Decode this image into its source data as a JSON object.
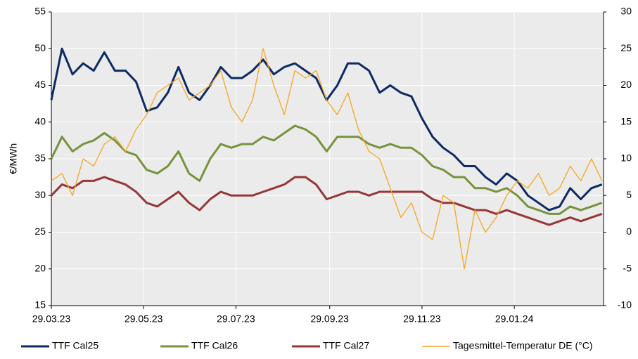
{
  "chart_data": {
    "type": "line",
    "ylabel": "€/MWh",
    "x": [
      "2023-03-29",
      "2023-04-05",
      "2023-04-12",
      "2023-04-19",
      "2023-04-26",
      "2023-05-03",
      "2023-05-10",
      "2023-05-17",
      "2023-05-24",
      "2023-05-31",
      "2023-06-07",
      "2023-06-14",
      "2023-06-21",
      "2023-06-28",
      "2023-07-05",
      "2023-07-12",
      "2023-07-19",
      "2023-07-26",
      "2023-08-02",
      "2023-08-09",
      "2023-08-16",
      "2023-08-23",
      "2023-08-30",
      "2023-09-06",
      "2023-09-13",
      "2023-09-20",
      "2023-09-27",
      "2023-10-04",
      "2023-10-11",
      "2023-10-18",
      "2023-10-25",
      "2023-11-01",
      "2023-11-08",
      "2023-11-15",
      "2023-11-22",
      "2023-11-29",
      "2023-12-06",
      "2023-12-13",
      "2023-12-20",
      "2023-12-27",
      "2024-01-03",
      "2024-01-10",
      "2024-01-17",
      "2024-01-24",
      "2024-01-31",
      "2024-02-07",
      "2024-02-14",
      "2024-02-21",
      "2024-02-28",
      "2024-03-06",
      "2024-03-13",
      "2024-03-20",
      "2024-03-27"
    ],
    "xlim": [
      "2023-03-29",
      "2024-03-28"
    ],
    "xticks": [
      {
        "value": "2023-03-29",
        "label": "29.03.23"
      },
      {
        "value": "2023-05-29",
        "label": "29.05.23"
      },
      {
        "value": "2023-07-29",
        "label": "29.07.23"
      },
      {
        "value": "2023-09-29",
        "label": "29.09.23"
      },
      {
        "value": "2023-11-29",
        "label": "29.11.23"
      },
      {
        "value": "2024-01-29",
        "label": "29.01.24"
      }
    ],
    "ylim": [
      15,
      55
    ],
    "yticks": [
      15,
      20,
      25,
      30,
      35,
      40,
      45,
      50,
      55
    ],
    "y2lim": [
      -10,
      30
    ],
    "y2ticks": [
      -10,
      -5,
      0,
      5,
      10,
      15,
      20,
      25,
      30
    ],
    "grid": true,
    "legend": "bottom",
    "series": [
      {
        "name": "TTF Cal25",
        "color": "#0d2a63",
        "values": [
          43,
          50,
          46.5,
          48,
          47,
          49.5,
          47,
          47,
          45.5,
          41.5,
          42,
          44,
          47.5,
          44,
          43,
          45,
          47.5,
          46,
          46,
          47,
          48.5,
          46.5,
          47.5,
          48,
          47,
          46,
          43,
          45,
          48,
          48,
          47,
          44,
          45,
          44,
          43.5,
          40.5,
          38,
          36.5,
          35.5,
          34,
          34,
          32.5,
          31.5,
          33,
          32,
          30,
          29,
          28,
          28.5,
          31,
          29.5,
          31,
          31.5
        ]
      },
      {
        "name": "TTF Cal26",
        "color": "#77933c",
        "values": [
          35,
          38,
          36,
          37,
          37.5,
          38.5,
          37.5,
          36,
          35.5,
          33.5,
          33,
          34,
          36,
          33,
          32,
          35,
          37,
          36.5,
          37,
          37,
          38,
          37.5,
          38.5,
          39.5,
          39,
          38,
          36,
          38,
          38,
          38,
          37,
          36.5,
          37,
          36.5,
          36.5,
          35.5,
          34,
          33.5,
          32.5,
          32.5,
          31,
          31,
          30.5,
          31,
          30,
          28.5,
          28,
          27.5,
          27.5,
          28.5,
          28,
          28.5,
          29
        ]
      },
      {
        "name": "TTF Cal27",
        "color": "#953735",
        "values": [
          30,
          31.5,
          31,
          32,
          32,
          32.5,
          32,
          31.5,
          30.5,
          29,
          28.5,
          29.5,
          30.5,
          29,
          28,
          29.5,
          30.5,
          30,
          30,
          30,
          30.5,
          31,
          31.5,
          32.5,
          32.5,
          31.5,
          29.5,
          30,
          30.5,
          30.5,
          30,
          30.5,
          30.5,
          30.5,
          30.5,
          30.5,
          29.5,
          29,
          29,
          28.5,
          28,
          28,
          27.5,
          28,
          27.5,
          27,
          26.5,
          26,
          26.5,
          27,
          26.5,
          27,
          27.5
        ]
      },
      {
        "name": "Tagesmittel-Temperatur DE (°C)",
        "color": "#f5a623",
        "axis": "y2",
        "values": [
          7,
          8,
          5,
          10,
          9,
          12,
          13,
          11,
          14,
          16,
          19,
          20,
          21,
          18,
          19,
          20,
          22,
          17,
          15,
          18,
          25,
          20,
          16,
          22,
          21,
          22,
          18,
          16,
          19,
          14,
          11,
          10,
          6,
          2,
          4,
          0,
          -1,
          5,
          4,
          -5,
          3,
          0,
          2,
          5,
          7,
          6,
          8,
          5,
          6,
          9,
          7,
          10,
          7
        ]
      }
    ]
  }
}
